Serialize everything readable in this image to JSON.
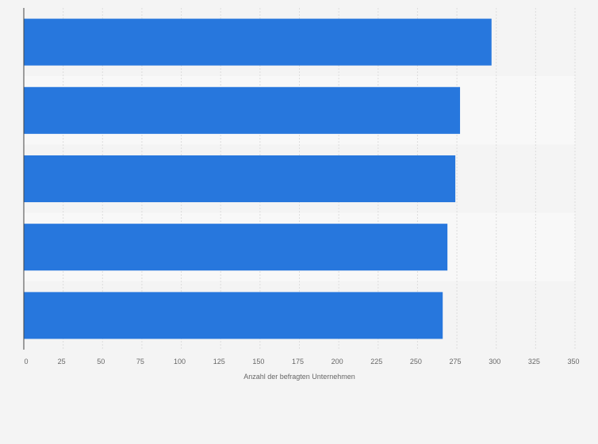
{
  "chart_data": {
    "type": "bar",
    "orientation": "horizontal",
    "categories": [
      "",
      "",
      "",
      "",
      ""
    ],
    "values": [
      297,
      277,
      274,
      269,
      266
    ],
    "xlabel": "Anzahl der befragten Unternehmen",
    "ylabel": "",
    "xlim": [
      0,
      350
    ],
    "xticks": [
      "0",
      "25",
      "50",
      "75",
      "100",
      "125",
      "150",
      "175",
      "200",
      "225",
      "250",
      "275",
      "300",
      "325",
      "350"
    ],
    "grid": true,
    "legend": "none",
    "colors": {
      "bar": "#2777dd",
      "background": "#f4f4f4",
      "band_alt": "#f8f8f8",
      "grid": "#dddddd",
      "axis": "#444444",
      "text": "#666666"
    }
  }
}
